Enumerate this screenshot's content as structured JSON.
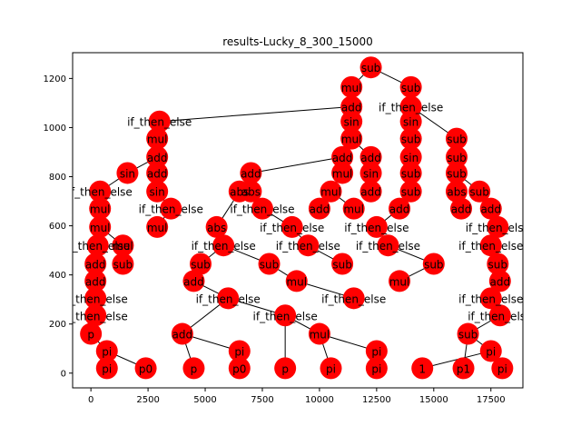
{
  "chart_data": {
    "type": "scatter",
    "title": "results-Lucky_8_300_15000",
    "xlabel": "",
    "ylabel": "",
    "xlim": [
      -800,
      18900
    ],
    "ylim": [
      -60,
      1305
    ],
    "xticks": [
      0,
      2500,
      5000,
      7500,
      10000,
      12500,
      15000,
      17500
    ],
    "xtick_labels": [
      "0",
      "2500",
      "5000",
      "7500",
      "10000",
      "12500",
      "15000",
      "17500"
    ],
    "yticks": [
      0,
      200,
      400,
      600,
      800,
      1000,
      1200
    ],
    "ytick_labels": [
      "0",
      "200",
      "400",
      "600",
      "800",
      "1000",
      "1200"
    ],
    "grid": false,
    "node_color": "#ff0000",
    "edge_color": "#000000",
    "nodes": [
      {
        "id": "root",
        "label": "sub",
        "x": 12250,
        "y": 1245
      },
      {
        "id": "n1",
        "label": "mul",
        "x": 11400,
        "y": 1165
      },
      {
        "id": "n2",
        "label": "sub",
        "x": 14000,
        "y": 1165
      },
      {
        "id": "n3",
        "label": "add",
        "x": 11400,
        "y": 1085
      },
      {
        "id": "n4",
        "label": "if_then_else",
        "x": 14000,
        "y": 1085
      },
      {
        "id": "n5",
        "label": "if_then_else",
        "x": 3000,
        "y": 1025
      },
      {
        "id": "n6",
        "label": "sin",
        "x": 11400,
        "y": 1025
      },
      {
        "id": "n7",
        "label": "sin",
        "x": 14000,
        "y": 1025
      },
      {
        "id": "n8",
        "label": "mul",
        "x": 2900,
        "y": 955
      },
      {
        "id": "n9",
        "label": "mul",
        "x": 11400,
        "y": 955
      },
      {
        "id": "n10",
        "label": "sub",
        "x": 14000,
        "y": 955
      },
      {
        "id": "n11",
        "label": "sub",
        "x": 16000,
        "y": 955
      },
      {
        "id": "n12",
        "label": "add",
        "x": 2900,
        "y": 880
      },
      {
        "id": "n13",
        "label": "add",
        "x": 11000,
        "y": 880
      },
      {
        "id": "n14",
        "label": "add",
        "x": 12250,
        "y": 880
      },
      {
        "id": "n15",
        "label": "sin",
        "x": 14000,
        "y": 880
      },
      {
        "id": "n16",
        "label": "sub",
        "x": 16000,
        "y": 880
      },
      {
        "id": "n17",
        "label": "sin",
        "x": 1600,
        "y": 815
      },
      {
        "id": "n18",
        "label": "add",
        "x": 2900,
        "y": 815
      },
      {
        "id": "n19",
        "label": "add",
        "x": 7000,
        "y": 815
      },
      {
        "id": "n20",
        "label": "mul",
        "x": 11000,
        "y": 815
      },
      {
        "id": "n21",
        "label": "sin",
        "x": 12250,
        "y": 815
      },
      {
        "id": "n22",
        "label": "sub",
        "x": 14000,
        "y": 815
      },
      {
        "id": "n23",
        "label": "sub",
        "x": 16000,
        "y": 815
      },
      {
        "id": "n24",
        "label": "if_then_else",
        "x": 400,
        "y": 740
      },
      {
        "id": "n25",
        "label": "sin",
        "x": 2900,
        "y": 740
      },
      {
        "id": "n26",
        "label": "abs",
        "x": 6500,
        "y": 740
      },
      {
        "id": "n27",
        "label": "abs",
        "x": 7000,
        "y": 740
      },
      {
        "id": "n28",
        "label": "mul",
        "x": 10500,
        "y": 740
      },
      {
        "id": "n29",
        "label": "add",
        "x": 12250,
        "y": 740
      },
      {
        "id": "n30",
        "label": "sub",
        "x": 14000,
        "y": 740
      },
      {
        "id": "n31",
        "label": "abs",
        "x": 16000,
        "y": 740
      },
      {
        "id": "n32",
        "label": "sub",
        "x": 17000,
        "y": 740
      },
      {
        "id": "n33",
        "label": "if_then_else",
        "x": 3500,
        "y": 670
      },
      {
        "id": "n34",
        "label": "if_then_else",
        "x": 7500,
        "y": 670
      },
      {
        "id": "n35",
        "label": "mul",
        "x": 400,
        "y": 670
      },
      {
        "id": "n36",
        "label": "add",
        "x": 10000,
        "y": 670
      },
      {
        "id": "n37",
        "label": "mul",
        "x": 11500,
        "y": 670
      },
      {
        "id": "n38",
        "label": "add",
        "x": 13500,
        "y": 670
      },
      {
        "id": "n39",
        "label": "add",
        "x": 16200,
        "y": 670
      },
      {
        "id": "n40",
        "label": "add",
        "x": 17500,
        "y": 670
      },
      {
        "id": "n41",
        "label": "mul",
        "x": 400,
        "y": 595
      },
      {
        "id": "n42",
        "label": "mul",
        "x": 2900,
        "y": 595
      },
      {
        "id": "n43",
        "label": "abs",
        "x": 5500,
        "y": 595
      },
      {
        "id": "n44",
        "label": "if_then_else",
        "x": 8800,
        "y": 595
      },
      {
        "id": "n45",
        "label": "if_then_else",
        "x": 12500,
        "y": 595
      },
      {
        "id": "n46",
        "label": "if_then_else",
        "x": 17800,
        "y": 595
      },
      {
        "id": "n47",
        "label": "if_then_else",
        "x": 300,
        "y": 520
      },
      {
        "id": "n48",
        "label": "mul",
        "x": 1400,
        "y": 520
      },
      {
        "id": "n49",
        "label": "if_then_else",
        "x": 5800,
        "y": 520
      },
      {
        "id": "n50",
        "label": "if_then_else",
        "x": 9500,
        "y": 520
      },
      {
        "id": "n51",
        "label": "if_then_else",
        "x": 13000,
        "y": 520
      },
      {
        "id": "n52",
        "label": "if_then_else",
        "x": 17500,
        "y": 520
      },
      {
        "id": "n53",
        "label": "add",
        "x": 200,
        "y": 445
      },
      {
        "id": "n54",
        "label": "sub",
        "x": 1400,
        "y": 445
      },
      {
        "id": "n55",
        "label": "sub",
        "x": 4800,
        "y": 445
      },
      {
        "id": "n56",
        "label": "sub",
        "x": 7800,
        "y": 445
      },
      {
        "id": "n57",
        "label": "sub",
        "x": 11000,
        "y": 445
      },
      {
        "id": "n58",
        "label": "sub",
        "x": 15000,
        "y": 445
      },
      {
        "id": "n59",
        "label": "sub",
        "x": 17800,
        "y": 445
      },
      {
        "id": "n60",
        "label": "add",
        "x": 200,
        "y": 375
      },
      {
        "id": "n61",
        "label": "add",
        "x": 4500,
        "y": 375
      },
      {
        "id": "n62",
        "label": "mul",
        "x": 9000,
        "y": 375
      },
      {
        "id": "n63",
        "label": "mul",
        "x": 13500,
        "y": 375
      },
      {
        "id": "n64",
        "label": "add",
        "x": 17900,
        "y": 375
      },
      {
        "id": "n65",
        "label": "if_then_else",
        "x": 200,
        "y": 305
      },
      {
        "id": "n66",
        "label": "if_then_else",
        "x": 6000,
        "y": 305
      },
      {
        "id": "n67",
        "label": "if_then_else",
        "x": 11500,
        "y": 305
      },
      {
        "id": "n68",
        "label": "if_then_else",
        "x": 17500,
        "y": 305
      },
      {
        "id": "n69",
        "label": "if_then_else",
        "x": 200,
        "y": 235
      },
      {
        "id": "n70",
        "label": "if_then_else",
        "x": 8500,
        "y": 235
      },
      {
        "id": "n71",
        "label": "if_then_else",
        "x": 17900,
        "y": 235
      },
      {
        "id": "n72",
        "label": "p",
        "x": 0,
        "y": 160
      },
      {
        "id": "n73",
        "label": "add",
        "x": 4000,
        "y": 160
      },
      {
        "id": "n74",
        "label": "mul",
        "x": 10000,
        "y": 160
      },
      {
        "id": "n75",
        "label": "sub",
        "x": 16500,
        "y": 160
      },
      {
        "id": "n76",
        "label": "pi",
        "x": 700,
        "y": 90
      },
      {
        "id": "n77",
        "label": "pi",
        "x": 6500,
        "y": 90
      },
      {
        "id": "n78",
        "label": "pi",
        "x": 12500,
        "y": 90
      },
      {
        "id": "n79",
        "label": "pi",
        "x": 17500,
        "y": 90
      },
      {
        "id": "n80",
        "label": "pi",
        "x": 700,
        "y": 20
      },
      {
        "id": "n81",
        "label": "p0",
        "x": 2400,
        "y": 20
      },
      {
        "id": "n82",
        "label": "p",
        "x": 4500,
        "y": 20
      },
      {
        "id": "n83",
        "label": "p0",
        "x": 6500,
        "y": 20
      },
      {
        "id": "n84",
        "label": "p",
        "x": 8500,
        "y": 20
      },
      {
        "id": "n85",
        "label": "pi",
        "x": 10500,
        "y": 20
      },
      {
        "id": "n86",
        "label": "pi",
        "x": 12500,
        "y": 20
      },
      {
        "id": "n87",
        "label": "1",
        "x": 14500,
        "y": 20
      },
      {
        "id": "n88",
        "label": "p1",
        "x": 16300,
        "y": 20
      },
      {
        "id": "n89",
        "label": "pi",
        "x": 18000,
        "y": 20
      }
    ],
    "edges": [
      [
        "root",
        "n1"
      ],
      [
        "root",
        "n2"
      ],
      [
        "n1",
        "n3"
      ],
      [
        "n2",
        "n4"
      ],
      [
        "n3",
        "n5"
      ],
      [
        "n3",
        "n6"
      ],
      [
        "n4",
        "n7"
      ],
      [
        "n4",
        "n11"
      ],
      [
        "n5",
        "n8"
      ],
      [
        "n6",
        "n9"
      ],
      [
        "n7",
        "n10"
      ],
      [
        "n8",
        "n12"
      ],
      [
        "n9",
        "n13"
      ],
      [
        "n9",
        "n14"
      ],
      [
        "n10",
        "n15"
      ],
      [
        "n11",
        "n16"
      ],
      [
        "n12",
        "n17"
      ],
      [
        "n12",
        "n18"
      ],
      [
        "n13",
        "n19"
      ],
      [
        "n13",
        "n20"
      ],
      [
        "n14",
        "n21"
      ],
      [
        "n15",
        "n22"
      ],
      [
        "n16",
        "n23"
      ],
      [
        "n17",
        "n24"
      ],
      [
        "n18",
        "n25"
      ],
      [
        "n19",
        "n26"
      ],
      [
        "n19",
        "n27"
      ],
      [
        "n20",
        "n28"
      ],
      [
        "n21",
        "n29"
      ],
      [
        "n22",
        "n30"
      ],
      [
        "n23",
        "n31"
      ],
      [
        "n23",
        "n32"
      ],
      [
        "n24",
        "n35"
      ],
      [
        "n25",
        "n33"
      ],
      [
        "n27",
        "n34"
      ],
      [
        "n28",
        "n36"
      ],
      [
        "n28",
        "n37"
      ],
      [
        "n30",
        "n38"
      ],
      [
        "n31",
        "n39"
      ],
      [
        "n32",
        "n40"
      ],
      [
        "n35",
        "n41"
      ],
      [
        "n33",
        "n42"
      ],
      [
        "n26",
        "n43"
      ],
      [
        "n34",
        "n44"
      ],
      [
        "n38",
        "n45"
      ],
      [
        "n40",
        "n46"
      ],
      [
        "n41",
        "n47"
      ],
      [
        "n41",
        "n48"
      ],
      [
        "n43",
        "n49"
      ],
      [
        "n44",
        "n50"
      ],
      [
        "n45",
        "n51"
      ],
      [
        "n46",
        "n52"
      ],
      [
        "n47",
        "n53"
      ],
      [
        "n48",
        "n54"
      ],
      [
        "n49",
        "n55"
      ],
      [
        "n49",
        "n56"
      ],
      [
        "n50",
        "n57"
      ],
      [
        "n51",
        "n58"
      ],
      [
        "n52",
        "n59"
      ],
      [
        "n53",
        "n60"
      ],
      [
        "n55",
        "n61"
      ],
      [
        "n56",
        "n62"
      ],
      [
        "n58",
        "n63"
      ],
      [
        "n59",
        "n64"
      ],
      [
        "n60",
        "n65"
      ],
      [
        "n61",
        "n66"
      ],
      [
        "n62",
        "n67"
      ],
      [
        "n64",
        "n68"
      ],
      [
        "n65",
        "n69"
      ],
      [
        "n66",
        "n70"
      ],
      [
        "n68",
        "n71"
      ],
      [
        "n69",
        "n72"
      ],
      [
        "n66",
        "n73"
      ],
      [
        "n70",
        "n74"
      ],
      [
        "n71",
        "n75"
      ],
      [
        "n72",
        "n76"
      ],
      [
        "n73",
        "n77"
      ],
      [
        "n74",
        "n78"
      ],
      [
        "n75",
        "n79"
      ],
      [
        "n76",
        "n80"
      ],
      [
        "n76",
        "n81"
      ],
      [
        "n73",
        "n82"
      ],
      [
        "n77",
        "n83"
      ],
      [
        "n70",
        "n84"
      ],
      [
        "n74",
        "n85"
      ],
      [
        "n78",
        "n86"
      ],
      [
        "n79",
        "n87"
      ],
      [
        "n75",
        "n88"
      ],
      [
        "n79",
        "n89"
      ]
    ]
  }
}
